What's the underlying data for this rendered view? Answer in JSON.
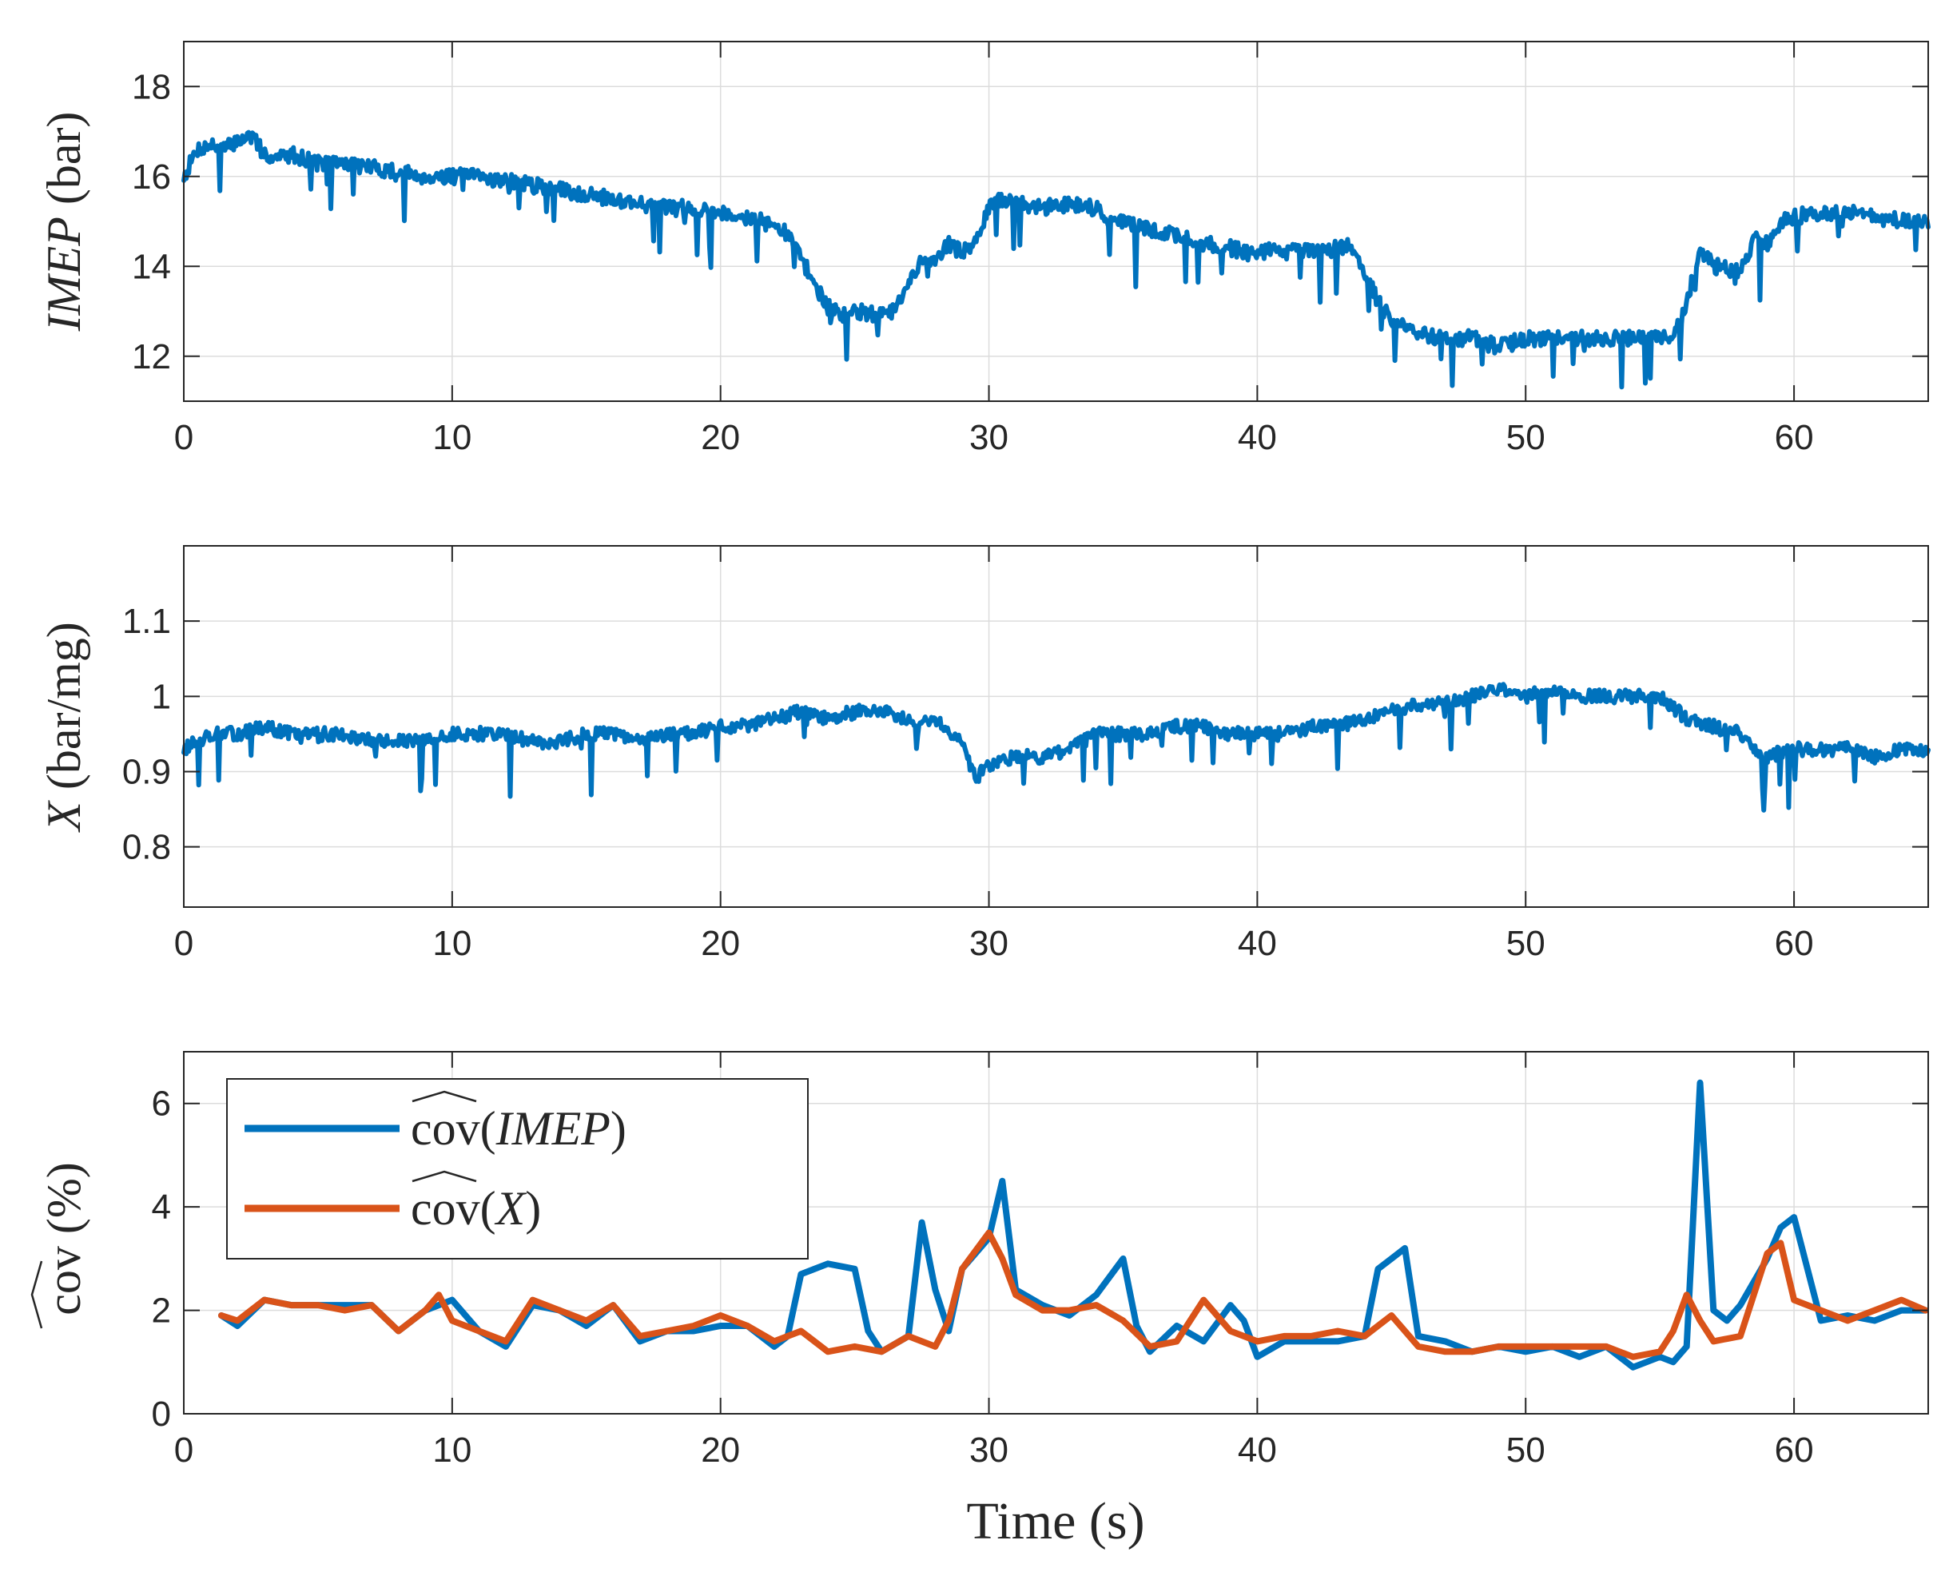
{
  "chart_data": [
    {
      "type": "line",
      "ylabel": "IMEP (bar)",
      "xlim": [
        0,
        65
      ],
      "ylim": [
        11,
        19
      ],
      "xticks": [
        "0",
        "10",
        "20",
        "30",
        "40",
        "50",
        "60"
      ],
      "yticks": [
        "12",
        "14",
        "16",
        "18"
      ],
      "grid": true,
      "series": [
        {
          "color": "#0072BD",
          "x": [
            0,
            0.5,
            1,
            1.5,
            2,
            2.5,
            3,
            3.5,
            4,
            5,
            6,
            7,
            8,
            9,
            10,
            11,
            12,
            13,
            14,
            15,
            16,
            17,
            18,
            19,
            20,
            21,
            22,
            22.5,
            23,
            23.5,
            24,
            24.5,
            25,
            26,
            26.5,
            27,
            27.5,
            28,
            28.5,
            29,
            29.5,
            30,
            30.5,
            31,
            32,
            33,
            34,
            34.5,
            35,
            36,
            37,
            38,
            39,
            40,
            41,
            42,
            43,
            43.5,
            44,
            44.5,
            45,
            46,
            47,
            48,
            49,
            50,
            51,
            52,
            53,
            54,
            55,
            55.5,
            56,
            56.5,
            57,
            58,
            58.5,
            59,
            59.5,
            60,
            61,
            62,
            63,
            64,
            65
          ],
          "y": [
            16.0,
            16.6,
            16.7,
            16.6,
            16.8,
            16.9,
            16.5,
            16.4,
            16.5,
            16.3,
            16.3,
            16.2,
            16.1,
            16.0,
            16.0,
            16.0,
            15.9,
            15.8,
            15.7,
            15.6,
            15.5,
            15.4,
            15.3,
            15.3,
            15.2,
            15.1,
            14.9,
            14.7,
            14.2,
            13.6,
            13.1,
            12.9,
            13.0,
            12.9,
            13.0,
            13.6,
            14.1,
            14.2,
            14.5,
            14.3,
            14.5,
            15.3,
            15.5,
            15.4,
            15.3,
            15.4,
            15.3,
            15.0,
            15.0,
            14.8,
            14.7,
            14.5,
            14.4,
            14.3,
            14.4,
            14.3,
            14.4,
            14.5,
            13.9,
            13.2,
            12.8,
            12.5,
            12.4,
            12.4,
            12.2,
            12.4,
            12.4,
            12.4,
            12.4,
            12.4,
            12.4,
            12.4,
            13.2,
            14.4,
            14.0,
            13.9,
            14.6,
            14.5,
            15.0,
            15.1,
            15.2,
            15.2,
            15.1,
            15.0,
            15.0
          ]
        }
      ]
    },
    {
      "type": "line",
      "ylabel": "X (bar/mg)",
      "xlim": [
        0,
        65
      ],
      "ylim": [
        0.72,
        1.2
      ],
      "xticks": [
        "0",
        "10",
        "20",
        "30",
        "40",
        "50",
        "60"
      ],
      "yticks": [
        "0.8",
        "0.9",
        "1",
        "1.1"
      ],
      "grid": true,
      "series": [
        {
          "color": "#0072BD",
          "x": [
            0,
            1,
            2,
            3,
            4,
            5,
            6,
            7,
            8,
            9,
            10,
            11,
            12,
            13,
            14,
            15,
            16,
            17,
            18,
            19,
            20,
            21,
            22,
            23,
            24,
            25,
            26,
            27,
            28,
            29,
            29.5,
            30,
            31,
            32,
            33,
            34,
            35,
            36,
            37,
            38,
            39,
            40,
            41,
            42,
            43,
            44,
            45,
            46,
            47,
            48,
            49,
            50,
            51,
            52,
            53,
            54,
            55,
            56,
            57,
            58,
            58.5,
            59,
            60,
            61,
            62,
            63,
            64,
            65
          ],
          "y": [
            0.93,
            0.95,
            0.95,
            0.96,
            0.95,
            0.95,
            0.95,
            0.94,
            0.94,
            0.94,
            0.95,
            0.95,
            0.95,
            0.94,
            0.94,
            0.95,
            0.95,
            0.94,
            0.95,
            0.95,
            0.96,
            0.96,
            0.97,
            0.98,
            0.97,
            0.98,
            0.98,
            0.97,
            0.97,
            0.94,
            0.89,
            0.91,
            0.92,
            0.92,
            0.93,
            0.95,
            0.95,
            0.95,
            0.96,
            0.96,
            0.95,
            0.95,
            0.95,
            0.96,
            0.96,
            0.97,
            0.98,
            0.99,
            0.99,
            1.0,
            1.01,
            1.0,
            1.01,
            1.0,
            1.0,
            1.0,
            1.0,
            0.97,
            0.96,
            0.95,
            0.93,
            0.92,
            0.93,
            0.93,
            0.93,
            0.92,
            0.93,
            0.93
          ]
        }
      ]
    },
    {
      "type": "line",
      "ylabel": "cov (%)",
      "xlabel": "Time (s)",
      "xlim": [
        0,
        65
      ],
      "ylim": [
        0,
        7
      ],
      "xticks": [
        "0",
        "10",
        "20",
        "30",
        "40",
        "50",
        "60"
      ],
      "yticks": [
        "0",
        "2",
        "4",
        "6"
      ],
      "grid": true,
      "legend": "top-left",
      "series": [
        {
          "name": "cov(IMEP)",
          "color": "#0072BD",
          "x": [
            1.4,
            2,
            3,
            4,
            5,
            6,
            7,
            8,
            9,
            10,
            11,
            12,
            13,
            14,
            15,
            16,
            17,
            18,
            19,
            20,
            21,
            22,
            22.5,
            23,
            24,
            25,
            25.5,
            26,
            27,
            27.5,
            28,
            28.5,
            29,
            30,
            30.5,
            31,
            32,
            33,
            34,
            35,
            35.5,
            36,
            37,
            38,
            39,
            39.5,
            40,
            41,
            42,
            43,
            44,
            44.5,
            45,
            45.5,
            46,
            47,
            48,
            49,
            50,
            51,
            52,
            53,
            54,
            55,
            55.5,
            56,
            56.5,
            57,
            57.5,
            58,
            59,
            59.5,
            60,
            61,
            62,
            63,
            64,
            64.9
          ],
          "y": [
            1.9,
            1.7,
            2.2,
            2.1,
            2.1,
            2.1,
            2.1,
            1.6,
            2.0,
            2.2,
            1.6,
            1.3,
            2.1,
            2.0,
            1.7,
            2.1,
            1.4,
            1.6,
            1.6,
            1.7,
            1.7,
            1.3,
            1.5,
            2.7,
            2.9,
            2.8,
            1.6,
            1.2,
            1.5,
            3.7,
            2.4,
            1.6,
            2.8,
            3.4,
            4.5,
            2.4,
            2.1,
            1.9,
            2.3,
            3.0,
            1.7,
            1.2,
            1.7,
            1.4,
            2.1,
            1.8,
            1.1,
            1.4,
            1.4,
            1.4,
            1.5,
            2.8,
            3.0,
            3.2,
            1.5,
            1.4,
            1.2,
            1.3,
            1.2,
            1.3,
            1.1,
            1.3,
            0.9,
            1.1,
            1.0,
            1.3,
            6.4,
            2.0,
            1.8,
            2.1,
            3.0,
            3.6,
            3.8,
            1.8,
            1.9,
            1.8,
            2.0,
            2.0
          ]
        },
        {
          "name": "cov(X)",
          "color": "#D95319",
          "x": [
            1.4,
            2,
            3,
            4,
            5,
            6,
            7,
            8,
            9,
            9.5,
            10,
            11,
            12,
            13,
            14,
            15,
            16,
            17,
            18,
            19,
            20,
            21,
            22,
            23,
            24,
            25,
            26,
            27,
            28,
            28.5,
            29,
            30,
            30.5,
            31,
            32,
            33,
            34,
            35,
            36,
            37,
            38,
            39,
            40,
            41,
            42,
            43,
            44,
            45,
            46,
            47,
            48,
            49,
            50,
            51,
            52,
            53,
            54,
            55,
            55.5,
            56,
            56.5,
            57,
            58,
            59,
            59.5,
            60,
            61,
            62,
            63,
            64,
            64.9
          ],
          "y": [
            1.9,
            1.8,
            2.2,
            2.1,
            2.1,
            2.0,
            2.1,
            1.6,
            2.0,
            2.3,
            1.8,
            1.6,
            1.4,
            2.2,
            2.0,
            1.8,
            2.1,
            1.5,
            1.6,
            1.7,
            1.9,
            1.7,
            1.4,
            1.6,
            1.2,
            1.3,
            1.2,
            1.5,
            1.3,
            1.8,
            2.8,
            3.5,
            3.0,
            2.3,
            2.0,
            2.0,
            2.1,
            1.8,
            1.3,
            1.4,
            2.2,
            1.6,
            1.4,
            1.5,
            1.5,
            1.6,
            1.5,
            1.9,
            1.3,
            1.2,
            1.2,
            1.3,
            1.3,
            1.3,
            1.3,
            1.3,
            1.1,
            1.2,
            1.6,
            2.3,
            1.8,
            1.4,
            1.5,
            3.1,
            3.3,
            2.2,
            2.0,
            1.8,
            2.0,
            2.2,
            2.0
          ]
        }
      ]
    }
  ]
}
